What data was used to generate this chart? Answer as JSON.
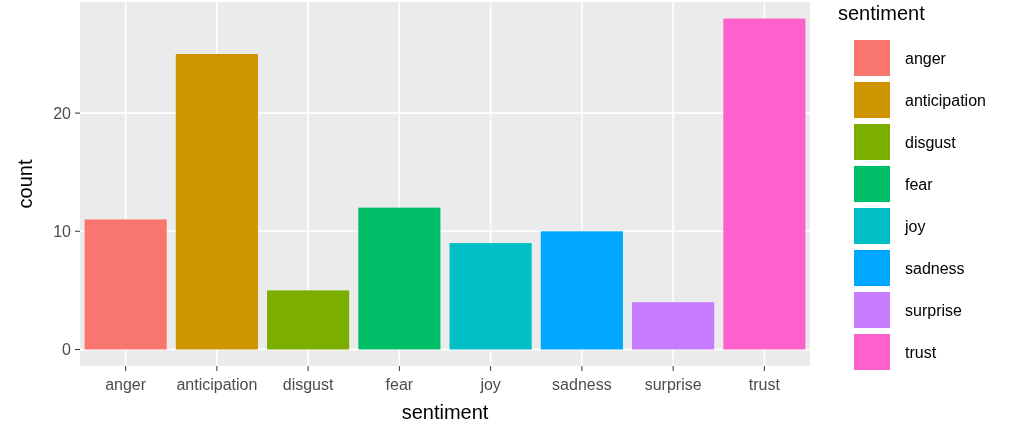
{
  "chart_data": {
    "type": "bar",
    "xlabel": "sentiment",
    "ylabel": "count",
    "legend_title": "sentiment",
    "stacked": true,
    "categories": [
      "anger",
      "anticipation",
      "disgust",
      "fear",
      "joy",
      "sadness",
      "surprise",
      "trust"
    ],
    "series": [
      {
        "name": "anger",
        "color": "#f8766d",
        "values": [
          11,
          null,
          null,
          null,
          null,
          null,
          null,
          null
        ]
      },
      {
        "name": "anticipation",
        "color": "#cd9600",
        "values": [
          null,
          25,
          null,
          null,
          null,
          null,
          null,
          null
        ]
      },
      {
        "name": "disgust",
        "color": "#7cae00",
        "values": [
          null,
          null,
          5,
          null,
          null,
          null,
          null,
          null
        ]
      },
      {
        "name": "fear",
        "color": "#00be67",
        "values": [
          null,
          null,
          null,
          12,
          null,
          null,
          null,
          null
        ]
      },
      {
        "name": "joy",
        "color": "#00bfc4",
        "values": [
          null,
          null,
          null,
          null,
          9,
          null,
          null,
          null
        ]
      },
      {
        "name": "sadness",
        "color": "#00a9ff",
        "values": [
          null,
          null,
          null,
          null,
          null,
          10,
          null,
          null
        ]
      },
      {
        "name": "surprise",
        "color": "#c77cff",
        "values": [
          null,
          null,
          null,
          null,
          null,
          null,
          4,
          null
        ]
      },
      {
        "name": "trust",
        "color": "#ff61cc",
        "values": [
          null,
          null,
          null,
          null,
          null,
          null,
          null,
          28
        ]
      }
    ],
    "ylim": [
      -1.4,
      29.4
    ],
    "yticks": [
      0,
      10,
      20
    ],
    "grid": true,
    "legend": "right"
  }
}
